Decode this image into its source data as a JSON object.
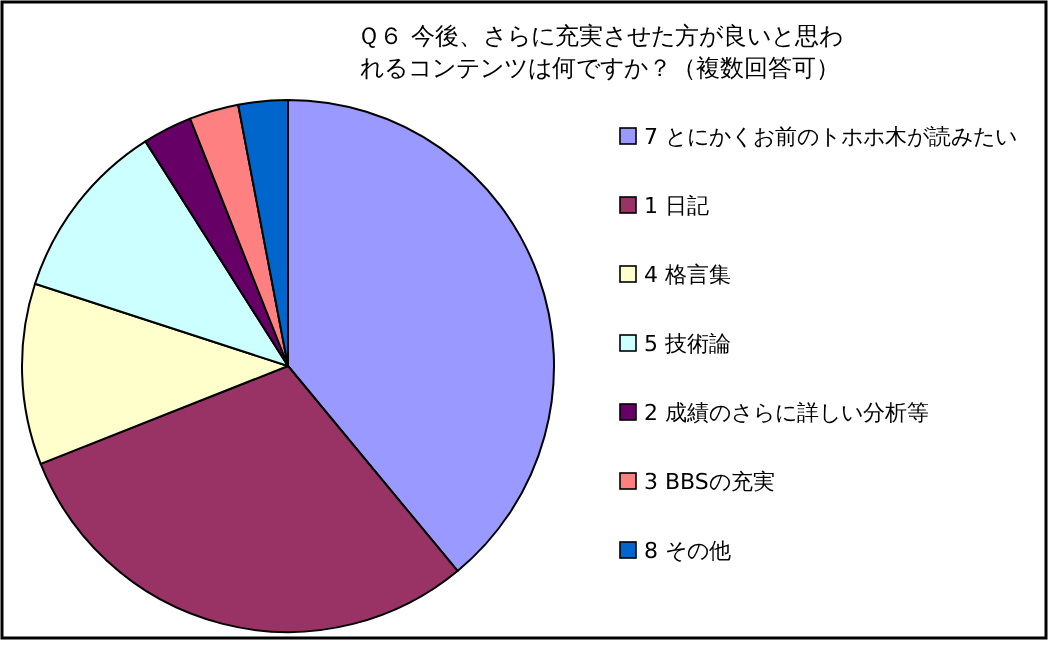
{
  "chart_data": {
    "type": "pie",
    "title": "Ｑ６ 今後、さらに充実させた方が良いと思われるコンテンツは何ですか？（複数回答可）",
    "categories": [
      "7 とにかくお前のトホホ木が読みたい",
      "1 日記",
      "4 格言集",
      "5 技術論",
      "2 成績のさらに詳しい分析等",
      "3 BBSの充実",
      "8 その他"
    ],
    "values": [
      39,
      30,
      11,
      11,
      3,
      3,
      3
    ],
    "colors": [
      "#9999ff",
      "#993366",
      "#ffffcc",
      "#ccffff",
      "#660066",
      "#ff8080",
      "#0066cc"
    ],
    "legend": "right"
  }
}
